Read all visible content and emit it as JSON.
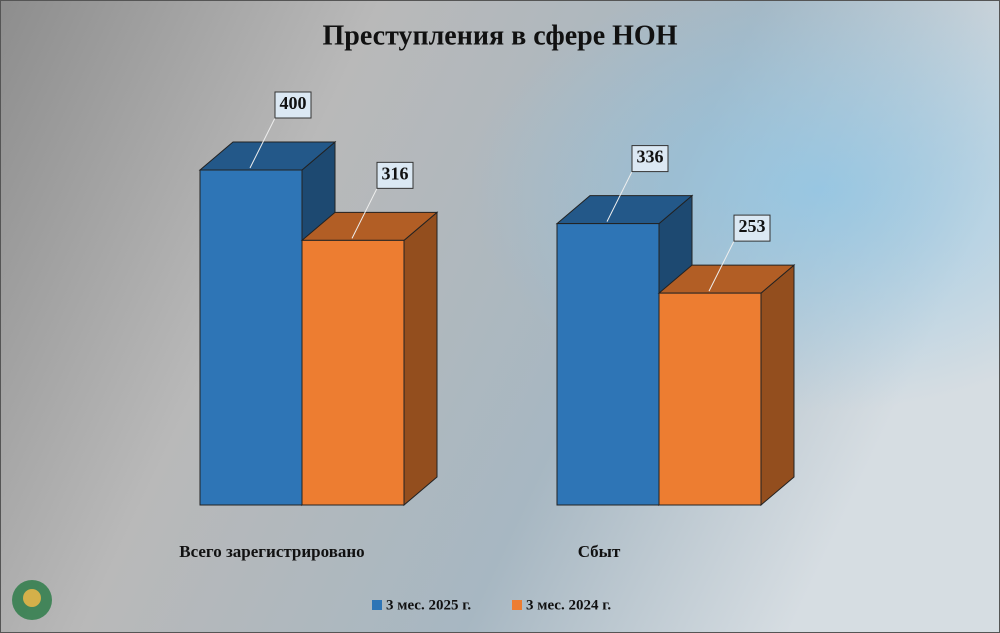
{
  "chart_data": {
    "type": "bar3d",
    "title": "Преступления в сфере НОН",
    "categories": [
      "Всего зарегистрировано",
      "Сбыт"
    ],
    "series": [
      {
        "name": "3 мес. 2025 г.",
        "color": "#2e75b6",
        "values": [
          400,
          336
        ]
      },
      {
        "name": "3 мес. 2024 г.",
        "color": "#ed7d31",
        "values": [
          316,
          253
        ]
      }
    ],
    "legend": "bottom"
  }
}
